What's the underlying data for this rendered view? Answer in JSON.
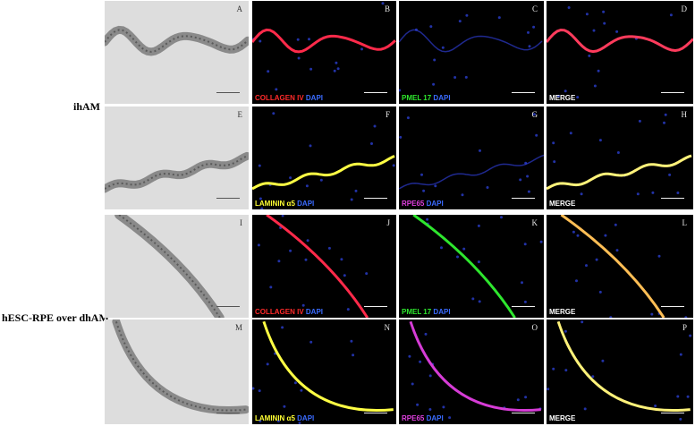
{
  "rows": [
    {
      "label": "ihAM"
    },
    {
      "label": "hESC-RPE over dhAM"
    }
  ],
  "panels": [
    {
      "letter": "A",
      "stain": []
    },
    {
      "letter": "B",
      "stain": [
        {
          "text": "COLLAGEN IV ",
          "color": "#ff2a2a"
        },
        {
          "text": "DAPI",
          "color": "#3a6bff"
        }
      ]
    },
    {
      "letter": "C",
      "stain": [
        {
          "text": "PMEL 17 ",
          "color": "#2ee62e"
        },
        {
          "text": "DAPI",
          "color": "#3a6bff"
        }
      ]
    },
    {
      "letter": "D",
      "stain": [
        {
          "text": "MERGE",
          "color": "#ffffff"
        }
      ]
    },
    {
      "letter": "E",
      "stain": []
    },
    {
      "letter": "F",
      "stain": [
        {
          "text": "LAMININ α5 ",
          "color": "#ffff33"
        },
        {
          "text": "DAPI",
          "color": "#3a6bff"
        }
      ]
    },
    {
      "letter": "G",
      "stain": [
        {
          "text": "RPE65 ",
          "color": "#e040e0"
        },
        {
          "text": "DAPI",
          "color": "#3a6bff"
        }
      ]
    },
    {
      "letter": "H",
      "stain": [
        {
          "text": "MERGE",
          "color": "#ffffff"
        }
      ]
    },
    {
      "letter": "I",
      "stain": []
    },
    {
      "letter": "J",
      "stain": [
        {
          "text": "COLLAGEN IV ",
          "color": "#ff2a2a"
        },
        {
          "text": "DAPI",
          "color": "#3a6bff"
        }
      ]
    },
    {
      "letter": "K",
      "stain": [
        {
          "text": "PMEL 17 ",
          "color": "#2ee62e"
        },
        {
          "text": "DAPI",
          "color": "#3a6bff"
        }
      ]
    },
    {
      "letter": "L",
      "stain": [
        {
          "text": "MERGE",
          "color": "#ffffff"
        }
      ]
    },
    {
      "letter": "M",
      "stain": []
    },
    {
      "letter": "N",
      "stain": [
        {
          "text": "LAMININ α5 ",
          "color": "#ffff33"
        },
        {
          "text": "DAPI",
          "color": "#3a6bff"
        }
      ]
    },
    {
      "letter": "O",
      "stain": [
        {
          "text": "RPE65 ",
          "color": "#e040e0"
        },
        {
          "text": "DAPI",
          "color": "#3a6bff"
        }
      ]
    },
    {
      "letter": "P",
      "stain": [
        {
          "text": "MERGE",
          "color": "#ffffff"
        }
      ]
    }
  ]
}
